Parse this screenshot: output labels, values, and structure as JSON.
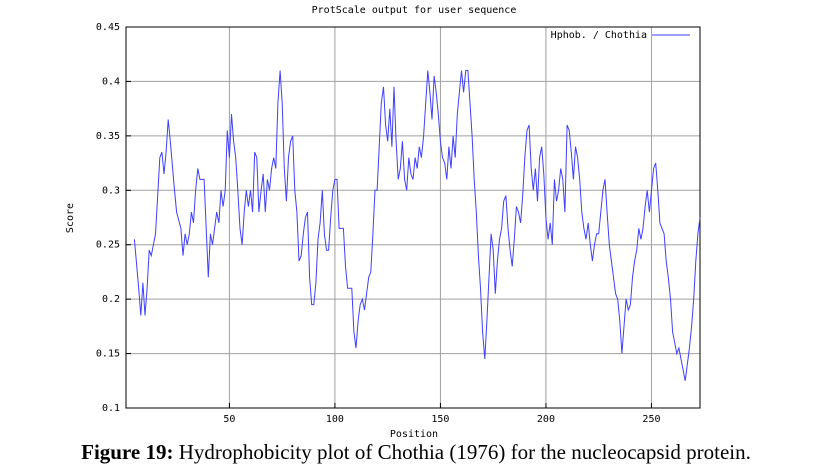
{
  "chart_data": {
    "type": "line",
    "title": "ProtScale output for user sequence",
    "xlabel": "Position",
    "ylabel": "Score",
    "xlim": [
      1,
      273
    ],
    "ylim": [
      0.1,
      0.45
    ],
    "x_ticks": [
      "50",
      "100",
      "150",
      "200",
      "250"
    ],
    "x_tick_values": [
      50,
      100,
      150,
      200,
      250
    ],
    "y_ticks": [
      "0.1",
      "0.15",
      "0.2",
      "0.25",
      "0.3",
      "0.35",
      "0.4",
      "0.45"
    ],
    "y_tick_values": [
      0.1,
      0.15,
      0.2,
      0.25,
      0.3,
      0.35,
      0.4,
      0.45
    ],
    "grid": true,
    "legend_position": "top-right",
    "series": [
      {
        "name": "Hphob. / Chothia",
        "color": "#3f3fff",
        "x": [
          5,
          7,
          8,
          9,
          10,
          11,
          12,
          13,
          15,
          16,
          17,
          18,
          19,
          20,
          21,
          22,
          24,
          25,
          27,
          28,
          29,
          30,
          31,
          32,
          33,
          34,
          35,
          36,
          38,
          39,
          40,
          41,
          42,
          43,
          44,
          45,
          46,
          47,
          48,
          49,
          50,
          51,
          52,
          53,
          54,
          55,
          56,
          57,
          58,
          59,
          60,
          61,
          62,
          63,
          64,
          65,
          66,
          67,
          68,
          69,
          70,
          71,
          72,
          73,
          74,
          75,
          76,
          77,
          78,
          79,
          80,
          81,
          82,
          83,
          84,
          85,
          86,
          87,
          88,
          89,
          90,
          91,
          92,
          93,
          94,
          95,
          96,
          97,
          98,
          99,
          100,
          101,
          102,
          103,
          104,
          105,
          106,
          108,
          109,
          110,
          111,
          112,
          113,
          114,
          115,
          116,
          117,
          118,
          119,
          120,
          121,
          122,
          123,
          124,
          125,
          126,
          127,
          128,
          129,
          130,
          131,
          132,
          133,
          134,
          135,
          136,
          137,
          138,
          139,
          140,
          141,
          142,
          143,
          144,
          145,
          146,
          147,
          148,
          149,
          150,
          151,
          152,
          153,
          154,
          155,
          156,
          157,
          158,
          159,
          160,
          161,
          162,
          163,
          164,
          165,
          166,
          167,
          168,
          169,
          170,
          171,
          172,
          173,
          174,
          175,
          176,
          177,
          178,
          179,
          180,
          181,
          182,
          183,
          184,
          185,
          186,
          187,
          188,
          189,
          190,
          191,
          192,
          193,
          194,
          195,
          196,
          197,
          198,
          199,
          200,
          201,
          202,
          203,
          204,
          205,
          206,
          207,
          208,
          209,
          210,
          211,
          212,
          213,
          214,
          215,
          216,
          217,
          218,
          219,
          220,
          221,
          222,
          223,
          224,
          225,
          226,
          227,
          228,
          229,
          230,
          231,
          232,
          233,
          234,
          235,
          236,
          237,
          238,
          239,
          240,
          241,
          242,
          243,
          244,
          245,
          246,
          247,
          248,
          249,
          250,
          251,
          252,
          253,
          254,
          255,
          256,
          257,
          258,
          259,
          260,
          261,
          262,
          263,
          264,
          265,
          266,
          267,
          268,
          269,
          270,
          271,
          272,
          273
        ],
        "values": [
          0.255,
          0.21,
          0.185,
          0.215,
          0.185,
          0.21,
          0.245,
          0.24,
          0.26,
          0.295,
          0.33,
          0.335,
          0.315,
          0.335,
          0.365,
          0.345,
          0.3,
          0.28,
          0.265,
          0.24,
          0.26,
          0.25,
          0.26,
          0.28,
          0.27,
          0.3,
          0.32,
          0.31,
          0.31,
          0.265,
          0.22,
          0.26,
          0.25,
          0.265,
          0.28,
          0.27,
          0.3,
          0.285,
          0.3,
          0.355,
          0.33,
          0.37,
          0.345,
          0.33,
          0.3,
          0.265,
          0.25,
          0.28,
          0.3,
          0.285,
          0.3,
          0.28,
          0.335,
          0.33,
          0.28,
          0.3,
          0.315,
          0.28,
          0.31,
          0.3,
          0.32,
          0.33,
          0.32,
          0.38,
          0.41,
          0.38,
          0.32,
          0.29,
          0.33,
          0.345,
          0.35,
          0.3,
          0.28,
          0.235,
          0.24,
          0.26,
          0.275,
          0.28,
          0.22,
          0.195,
          0.195,
          0.215,
          0.255,
          0.27,
          0.3,
          0.26,
          0.245,
          0.245,
          0.275,
          0.3,
          0.31,
          0.31,
          0.265,
          0.265,
          0.265,
          0.23,
          0.21,
          0.21,
          0.17,
          0.155,
          0.18,
          0.195,
          0.2,
          0.19,
          0.205,
          0.22,
          0.225,
          0.26,
          0.3,
          0.3,
          0.34,
          0.38,
          0.395,
          0.36,
          0.345,
          0.375,
          0.34,
          0.395,
          0.345,
          0.31,
          0.32,
          0.345,
          0.31,
          0.3,
          0.33,
          0.315,
          0.31,
          0.33,
          0.32,
          0.34,
          0.33,
          0.35,
          0.38,
          0.41,
          0.39,
          0.365,
          0.405,
          0.39,
          0.37,
          0.345,
          0.33,
          0.325,
          0.31,
          0.34,
          0.32,
          0.35,
          0.33,
          0.37,
          0.39,
          0.41,
          0.39,
          0.41,
          0.41,
          0.38,
          0.35,
          0.31,
          0.28,
          0.24,
          0.21,
          0.17,
          0.145,
          0.18,
          0.22,
          0.26,
          0.245,
          0.205,
          0.235,
          0.255,
          0.265,
          0.29,
          0.295,
          0.265,
          0.245,
          0.23,
          0.255,
          0.285,
          0.28,
          0.27,
          0.295,
          0.33,
          0.355,
          0.36,
          0.32,
          0.3,
          0.32,
          0.29,
          0.33,
          0.34,
          0.315,
          0.275,
          0.255,
          0.27,
          0.25,
          0.31,
          0.29,
          0.3,
          0.32,
          0.31,
          0.28,
          0.36,
          0.355,
          0.335,
          0.31,
          0.34,
          0.33,
          0.31,
          0.28,
          0.265,
          0.255,
          0.27,
          0.25,
          0.235,
          0.25,
          0.26,
          0.26,
          0.28,
          0.3,
          0.31,
          0.28,
          0.25,
          0.235,
          0.22,
          0.205,
          0.2,
          0.18,
          0.15,
          0.175,
          0.2,
          0.19,
          0.195,
          0.22,
          0.235,
          0.245,
          0.265,
          0.255,
          0.265,
          0.285,
          0.3,
          0.28,
          0.3,
          0.32,
          0.325,
          0.3,
          0.27,
          0.265,
          0.26,
          0.235,
          0.22,
          0.2,
          0.17,
          0.16,
          0.15,
          0.155,
          0.145,
          0.135,
          0.125,
          0.14,
          0.155,
          0.175,
          0.2,
          0.235,
          0.26,
          0.275
        ]
      }
    ]
  },
  "caption": {
    "label": "Figure 19:",
    "text": " Hydrophobicity plot of Chothia (1976) for the nucleocapsid protein."
  }
}
